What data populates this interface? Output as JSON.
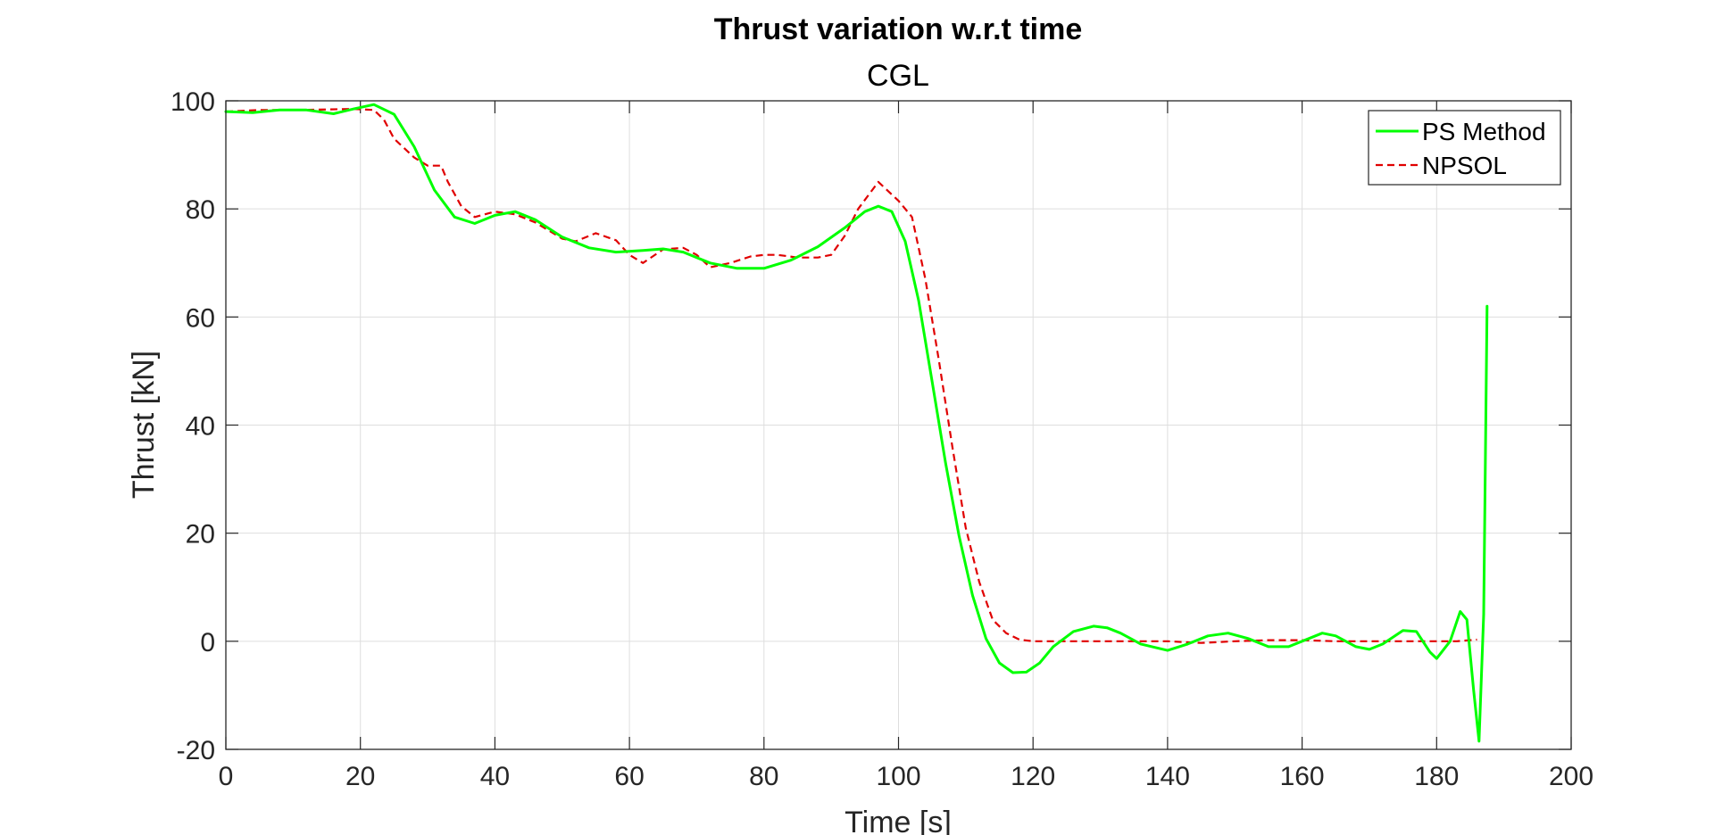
{
  "chart_data": {
    "type": "line",
    "title": "Thrust variation w.r.t time",
    "subtitle": "CGL",
    "xlabel": "Time [s]",
    "ylabel": "Thrust [kN]",
    "xlim": [
      0,
      200
    ],
    "ylim": [
      -20,
      100
    ],
    "xticks": [
      0,
      20,
      40,
      60,
      80,
      100,
      120,
      140,
      160,
      180,
      200
    ],
    "yticks": [
      -20,
      0,
      20,
      40,
      60,
      80,
      100
    ],
    "xtick_labels": [
      "0",
      "20",
      "40",
      "60",
      "80",
      "100",
      "120",
      "140",
      "160",
      "180",
      "200"
    ],
    "ytick_labels": [
      "-20",
      "0",
      "20",
      "40",
      "60",
      "80",
      "100"
    ],
    "grid": true,
    "legend_position": "top-right",
    "series": [
      {
        "name": "PS Method",
        "color": "#00ff00",
        "style": "solid",
        "x": [
          0,
          4,
          8,
          12,
          16,
          19,
          22,
          25,
          28,
          31,
          34,
          37,
          40,
          43,
          46,
          50,
          54,
          58,
          62,
          65,
          68,
          72,
          76,
          80,
          84,
          88,
          92,
          95,
          97,
          99,
          101,
          103,
          105,
          107,
          109,
          111,
          113,
          115,
          117,
          119,
          121,
          123,
          126,
          129,
          131,
          133,
          136,
          140,
          143,
          146,
          149,
          152,
          155,
          158,
          161,
          163,
          165,
          168,
          170,
          172,
          175,
          177,
          179,
          180,
          182,
          183.5,
          184.5,
          185.5,
          186.3,
          187,
          187.5
        ],
        "y": [
          98,
          97.8,
          98.3,
          98.3,
          97.6,
          98.5,
          99.3,
          97.5,
          91.5,
          83.5,
          78.5,
          77.3,
          78.8,
          79.5,
          78,
          74.8,
          72.8,
          72,
          72.3,
          72.6,
          72,
          70,
          69,
          69,
          70.5,
          73,
          76.5,
          79.5,
          80.5,
          79.5,
          74,
          63,
          48,
          33,
          19.5,
          8.5,
          0.5,
          -4,
          -5.8,
          -5.7,
          -4,
          -1,
          1.8,
          2.8,
          2.5,
          1.5,
          -0.5,
          -1.7,
          -0.5,
          1,
          1.5,
          0.5,
          -1,
          -1,
          0.5,
          1.5,
          1,
          -1,
          -1.5,
          -0.5,
          2,
          1.8,
          -2,
          -3.2,
          0,
          5.5,
          4,
          -9,
          -18.5,
          5,
          62
        ]
      },
      {
        "name": "NPSOL",
        "color": "#e00000",
        "style": "dashed",
        "x": [
          0,
          5,
          10,
          15,
          19,
          22,
          23.5,
          25,
          28,
          30,
          32,
          33,
          35,
          37,
          40,
          43,
          46,
          48,
          50,
          52,
          55,
          58,
          60,
          62,
          65,
          68,
          70,
          72,
          75,
          78,
          80,
          82,
          85,
          88,
          90,
          92,
          94,
          97,
          100,
          102,
          104,
          106,
          108,
          110,
          112,
          114,
          116,
          118,
          120,
          125,
          130,
          135,
          140,
          145,
          150,
          155,
          160,
          165,
          170,
          175,
          180,
          183,
          186
        ],
        "y": [
          98,
          98.3,
          98.3,
          98.4,
          98.5,
          98.3,
          96.5,
          93,
          89.5,
          88,
          88,
          85,
          80.5,
          78.5,
          79.5,
          79,
          77.5,
          76,
          74.5,
          74,
          75.5,
          74.2,
          71.5,
          70,
          72.5,
          72.8,
          71.5,
          69.2,
          70,
          71.2,
          71.5,
          71.5,
          71,
          71,
          71.5,
          75,
          80,
          85,
          81.5,
          78.5,
          67,
          52,
          36,
          21,
          11,
          4,
          1.5,
          0.3,
          0,
          0,
          0,
          0,
          0,
          -0.3,
          0,
          0.2,
          0.2,
          0,
          0,
          0,
          0,
          0,
          0.3
        ]
      }
    ]
  }
}
